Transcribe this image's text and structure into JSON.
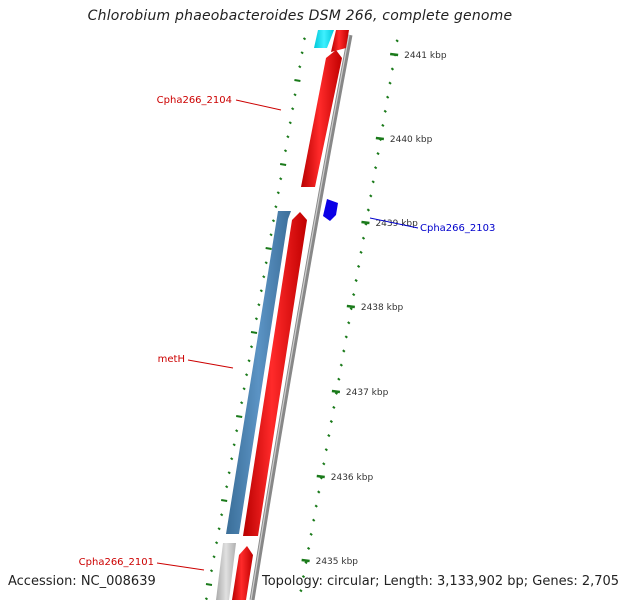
{
  "map": {
    "title": "Chlorobium phaeobacteroides DSM 266, complete genome",
    "accession": "Accession: NC_008639",
    "summary": "Topology: circular; Length: 3,133,902 bp; Genes: 2,705",
    "colors": {
      "forward_gene": "#ff0000",
      "reverse_gene": "#4682b4",
      "other_gene_cyan": "#00e5ee",
      "small_gene_blue": "#0000ee",
      "pseudo_gene_gray": "#c8c8c8",
      "backbone": "#8a8a8a",
      "tick": "#1a7a1a",
      "label_red": "#cc0000",
      "label_blue": "#0000cc"
    }
  },
  "ticks": [
    {
      "label": "2441 kbp"
    },
    {
      "label": "2440 kbp"
    },
    {
      "label": "2439 kbp"
    },
    {
      "label": "2438 kbp"
    },
    {
      "label": "2437 kbp"
    },
    {
      "label": "2436 kbp"
    },
    {
      "label": "2435 kbp"
    }
  ],
  "genes": [
    {
      "name": "Cpha266_2104",
      "color": "#cc0000"
    },
    {
      "name": "Cpha266_2103",
      "color": "#0000cc"
    },
    {
      "name": "metH",
      "color": "#cc0000"
    },
    {
      "name": "Cpha266_2101",
      "color": "#cc0000"
    }
  ]
}
